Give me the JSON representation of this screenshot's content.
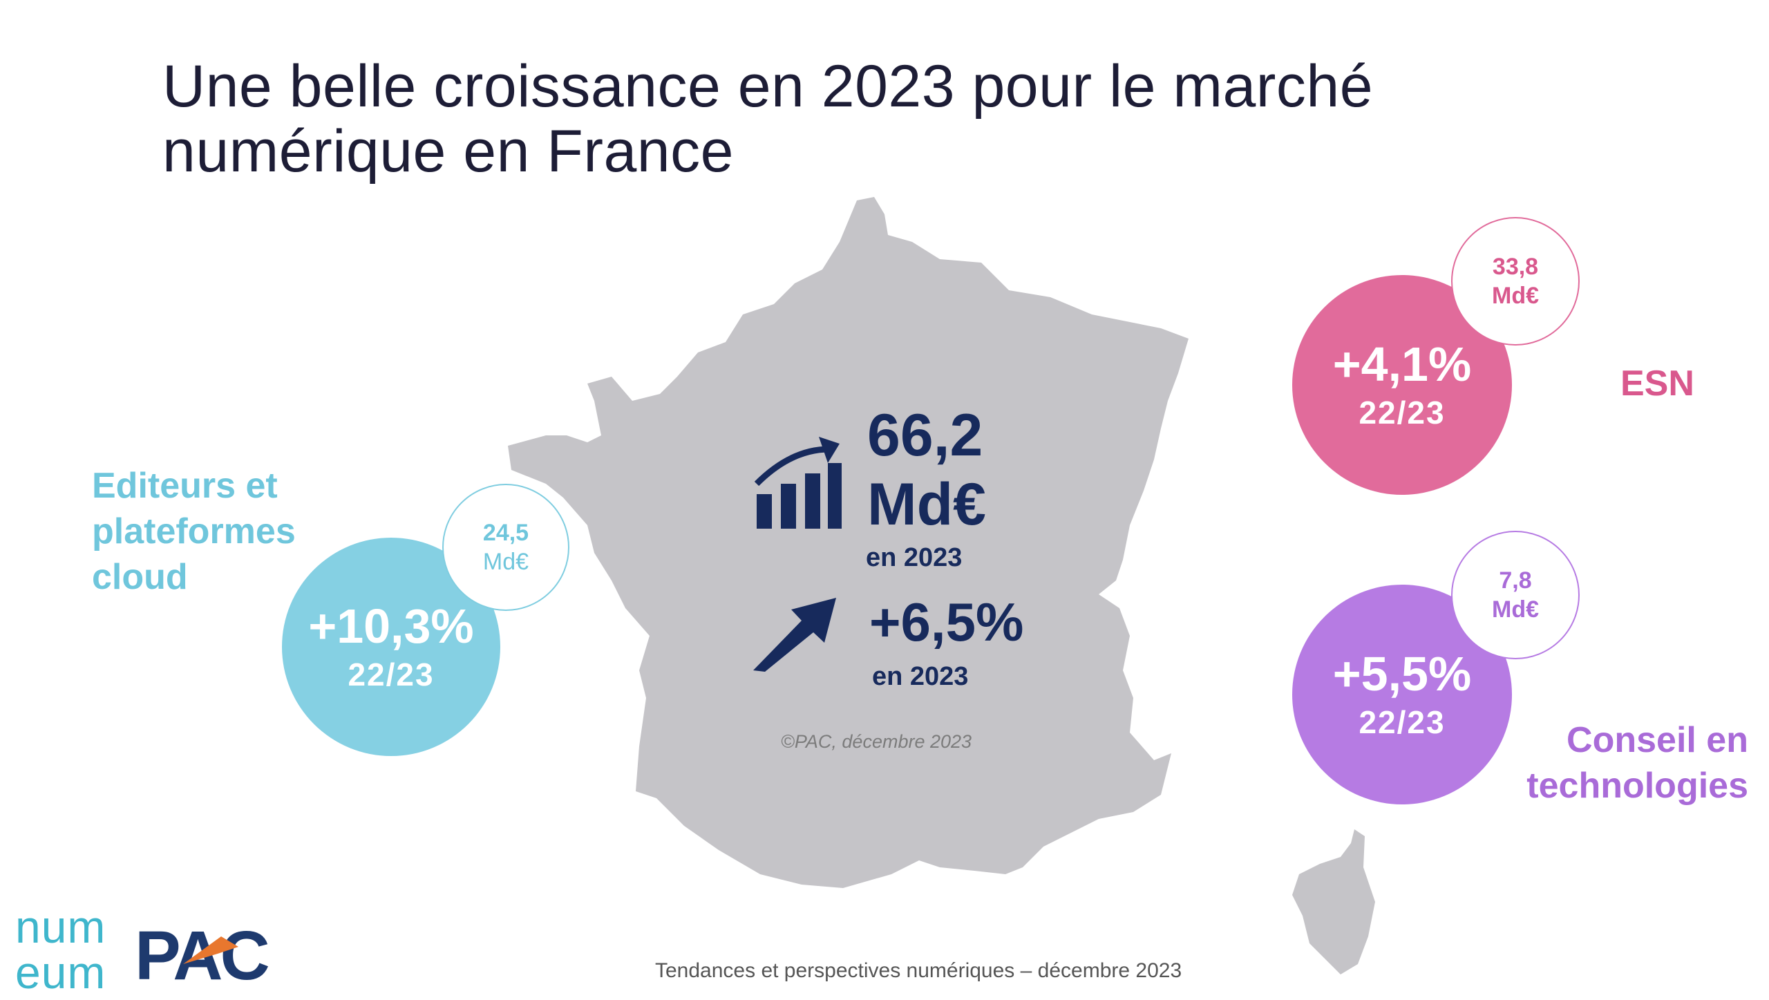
{
  "title": "Une belle croissance en 2023 pour le marché numérique en France",
  "center": {
    "total_value": "66,2",
    "total_unit": "Md€",
    "total_caption": "en 2023",
    "growth": "+6,5%",
    "growth_caption": "en 2023",
    "icons": [
      "bar-chart-growth-icon",
      "arrow-up-right-icon"
    ]
  },
  "segments": {
    "editeurs": {
      "label_line1": "Editeurs et",
      "label_line2": "plateformes",
      "label_line3": "cloud",
      "growth": "+10,3%",
      "period": "22/23",
      "value": "24,5",
      "unit": "Md€",
      "color": "#85d0e3"
    },
    "esn": {
      "label": "ESN",
      "growth": "+4,1%",
      "period": "22/23",
      "value": "33,8",
      "unit": "Md€",
      "color": "#e16b9b"
    },
    "conseil": {
      "label_line1": "Conseil en",
      "label_line2": "technologies",
      "growth": "+5,5%",
      "period": "22/23",
      "value": "7,8",
      "unit": "Md€",
      "color": "#b67be3"
    }
  },
  "copyright": "©PAC, décembre 2023",
  "footer": "Tendances et perspectives numériques – décembre 2023",
  "logos": {
    "numeum_line1": "num",
    "numeum_line2": "eum",
    "pac": "PAC"
  }
}
